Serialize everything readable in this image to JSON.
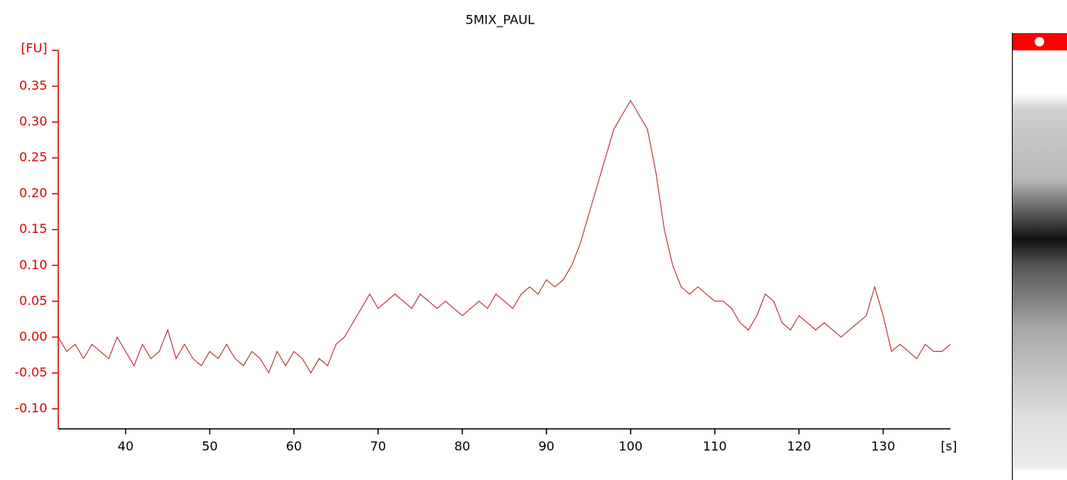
{
  "chart_data": {
    "type": "line",
    "title": "5MIX_PAUL",
    "ylabel": "[FU]",
    "xlabel": "[s]",
    "x": [
      32,
      33,
      34,
      35,
      36,
      37,
      38,
      39,
      40,
      41,
      42,
      43,
      44,
      45,
      46,
      47,
      48,
      49,
      50,
      51,
      52,
      53,
      54,
      55,
      56,
      57,
      58,
      59,
      60,
      61,
      62,
      63,
      64,
      65,
      66,
      67,
      68,
      69,
      70,
      71,
      72,
      73,
      74,
      75,
      76,
      77,
      78,
      79,
      80,
      81,
      82,
      83,
      84,
      85,
      86,
      87,
      88,
      89,
      90,
      91,
      92,
      93,
      94,
      95,
      96,
      97,
      98,
      99,
      100,
      101,
      102,
      103,
      104,
      105,
      106,
      107,
      108,
      109,
      110,
      111,
      112,
      113,
      114,
      115,
      116,
      117,
      118,
      119,
      120,
      121,
      122,
      123,
      124,
      125,
      126,
      127,
      128,
      129,
      130,
      131,
      132,
      133,
      134,
      135,
      136,
      137,
      138
    ],
    "series": [
      {
        "color": "#b22222",
        "values": [
          0.0,
          -0.02,
          -0.01,
          -0.03,
          -0.01,
          -0.02,
          -0.03,
          0.0,
          -0.02,
          -0.04,
          -0.01,
          -0.03,
          -0.02,
          0.01,
          -0.03,
          -0.01,
          -0.03,
          -0.04,
          -0.02,
          -0.03,
          -0.01,
          -0.03,
          -0.04,
          -0.02,
          -0.03,
          -0.05,
          -0.02,
          -0.04,
          -0.02,
          -0.03,
          -0.05,
          -0.03,
          -0.04,
          -0.01,
          0.0,
          0.02,
          0.04,
          0.06,
          0.04,
          0.05,
          0.06,
          0.05,
          0.04,
          0.06,
          0.05,
          0.04,
          0.05,
          0.04,
          0.03,
          0.04,
          0.05,
          0.04,
          0.06,
          0.05,
          0.04,
          0.06,
          0.07,
          0.06,
          0.08,
          0.07,
          0.08,
          0.1,
          0.13,
          0.17,
          0.21,
          0.25,
          0.29,
          0.31,
          0.33,
          0.31,
          0.29,
          0.23,
          0.15,
          0.1,
          0.07,
          0.06,
          0.07,
          0.06,
          0.05,
          0.05,
          0.04,
          0.02,
          0.01,
          0.03,
          0.06,
          0.05,
          0.02,
          0.01,
          0.03,
          0.02,
          0.01,
          0.02,
          0.01,
          0.0,
          0.01,
          0.02,
          0.03,
          0.07,
          0.03,
          -0.02,
          -0.01,
          -0.02,
          -0.03,
          -0.01,
          -0.02,
          -0.02,
          -0.01
        ]
      }
    ],
    "xlim": [
      32,
      138
    ],
    "ylim": [
      -0.128,
      0.4
    ],
    "xticks": [
      40,
      50,
      60,
      70,
      80,
      90,
      100,
      110,
      120,
      130
    ],
    "yticks": [
      {
        "value": -0.1,
        "label": "-0.10"
      },
      {
        "value": -0.05,
        "label": "-0.05"
      },
      {
        "value": 0,
        "label": "0.00"
      },
      {
        "value": 0.05,
        "label": "0.05"
      },
      {
        "value": 0.1,
        "label": "0.10"
      },
      {
        "value": 0.15,
        "label": "0.15"
      },
      {
        "value": 0.2,
        "label": "0.20"
      },
      {
        "value": 0.25,
        "label": "0.25"
      },
      {
        "value": 0.3,
        "label": "0.30"
      },
      {
        "value": 0.35,
        "label": "0.35"
      }
    ],
    "axis_color": "#e00000"
  }
}
